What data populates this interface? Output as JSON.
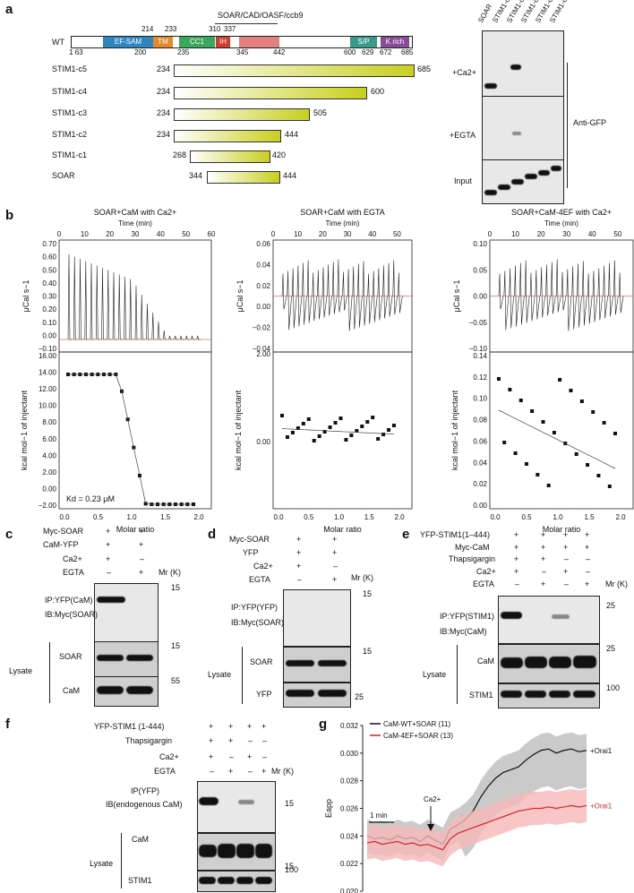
{
  "panels": {
    "a": "a",
    "b": "b",
    "c": "c",
    "d": "d",
    "e": "e",
    "f": "f",
    "g": "g"
  },
  "panel_a": {
    "region_title": "SOAR/CAD/OASF/ccb9",
    "wt_label": "WT",
    "domains": [
      {
        "name": "EF-SAM",
        "color": "#2e86c1"
      },
      {
        "name": "TM",
        "color": "#e08a2c"
      },
      {
        "name": "CC1",
        "color": "#3aa85a"
      },
      {
        "name": "IH",
        "color": "#d23b2b"
      },
      {
        "name": "",
        "color": "#e58080"
      },
      {
        "name": "S/P",
        "color": "#3a9a8a"
      },
      {
        "name": "K rich",
        "color": "#8a4a9a"
      }
    ],
    "top_numbers": [
      "214",
      "233",
      "310",
      "337"
    ],
    "bottom_numbers": [
      "1",
      "63",
      "200",
      "235",
      "345",
      "442",
      "600",
      "629",
      "672",
      "685"
    ],
    "constructs": [
      {
        "name": "STIM1-c5",
        "start": "234",
        "end": "685"
      },
      {
        "name": "STIM1-c4",
        "start": "234",
        "end": "600"
      },
      {
        "name": "STIM1-c3",
        "start": "234",
        "end": "505"
      },
      {
        "name": "STIM1-c2",
        "start": "234",
        "end": "444"
      },
      {
        "name": "STIM1-c1",
        "start": "268",
        "end": "420"
      },
      {
        "name": "SOAR",
        "start": "344",
        "end": "444"
      }
    ],
    "blot_lanes": [
      "SOAR",
      "STIM1-c1",
      "STIM1-c2",
      "STIM1-c3",
      "STIM1-c4",
      "STIM1-c5"
    ],
    "blot_rows": [
      "+Ca2+",
      "+EGTA",
      "Input"
    ],
    "antibody": "Anti-GFP"
  },
  "panel_b": {
    "plots": [
      {
        "title": "SOAR+CaM with Ca2+",
        "time_label": "Time (min)",
        "time_ticks": [
          "0",
          "10",
          "20",
          "30",
          "40",
          "50",
          "60"
        ],
        "top_ylabel": "μCal s−1",
        "top_ticks": [
          "0.70",
          "0.60",
          "0.50",
          "0.40",
          "0.30",
          "0.20",
          "0.10",
          "0.00",
          "−0.10"
        ],
        "bottom_ylabel": "kcal mol−1 of injectant",
        "bottom_ticks": [
          "16.00",
          "14.00",
          "12.00",
          "10.00",
          "8.00",
          "6.00",
          "4.00",
          "2.00",
          "0.00",
          "−2.00"
        ],
        "x_label": "Molar ratio",
        "x_ticks": [
          "0.0",
          "0.5",
          "1.0",
          "1.5",
          "2.0"
        ],
        "annotation": "Kd = 0.23 μM"
      },
      {
        "title": "SOAR+CaM with EGTA",
        "time_label": "Time (min)",
        "time_ticks": [
          "0",
          "10",
          "20",
          "30",
          "40",
          "50"
        ],
        "top_ylabel": "μCal s−1",
        "top_ticks": [
          "0.06",
          "0.04",
          "0.02",
          "0.00",
          "−0.02",
          "−0.04"
        ],
        "bottom_ylabel": "kcal mol−1 of injectant",
        "bottom_ticks": [
          "2.00",
          "0.00"
        ],
        "x_label": "Molar ratio",
        "x_ticks": [
          "0.0",
          "0.5",
          "1.0",
          "1.5",
          "2.0"
        ]
      },
      {
        "title": "SOAR+CaM-4EF with Ca2+",
        "time_label": "Time (min)",
        "time_ticks": [
          "0",
          "10",
          "20",
          "30",
          "40",
          "50"
        ],
        "top_ylabel": "μCal s−1",
        "top_ticks": [
          "0.10",
          "0.05",
          "0.00",
          "−0.05",
          "−0.10"
        ],
        "bottom_ylabel": "kcal mol−1 of injectant",
        "bottom_ticks": [
          "0.14",
          "0.12",
          "0.10",
          "0.08",
          "0.06",
          "0.04",
          "0.02",
          "0.00"
        ],
        "x_label": "Molar ratio",
        "x_ticks": [
          "0.0",
          "0.5",
          "1.0",
          "1.5",
          "2.0"
        ]
      }
    ]
  },
  "panel_c": {
    "conditions": [
      {
        "label": "Myc-SOAR",
        "values": [
          "+",
          "+"
        ]
      },
      {
        "label": "CaM-YFP",
        "values": [
          "+",
          "+"
        ]
      },
      {
        "label": "Ca2+",
        "values": [
          "+",
          "–"
        ]
      },
      {
        "label": "EGTA",
        "values": [
          "–",
          "+"
        ]
      }
    ],
    "mr": "Mr (K)",
    "ip_label": "IP:YFP(CaM)",
    "ib_label": "IB:Myc(SOAR)",
    "markers": [
      "15",
      "15",
      "55"
    ],
    "lysate": "Lysate",
    "rows": [
      "SOAR",
      "CaM"
    ]
  },
  "panel_d": {
    "conditions": [
      {
        "label": "Myc-SOAR",
        "values": [
          "+",
          "+"
        ]
      },
      {
        "label": "YFP",
        "values": [
          "+",
          "+"
        ]
      },
      {
        "label": "Ca2+",
        "values": [
          "+",
          "–"
        ]
      },
      {
        "label": "EGTA",
        "values": [
          "–",
          "+"
        ]
      }
    ],
    "mr": "Mr (K)",
    "ip_label": "IP:YFP(YFP)",
    "ib_label": "IB:Myc(SOAR)",
    "markers": [
      "15",
      "15",
      "25"
    ],
    "lysate": "Lysate",
    "rows": [
      "SOAR",
      "YFP"
    ]
  },
  "panel_e": {
    "conditions": [
      {
        "label": "YFP-STIM1(1–444)",
        "values": [
          "+",
          "+",
          "+",
          "+"
        ]
      },
      {
        "label": "Myc-CaM",
        "values": [
          "+",
          "+",
          "+",
          "+"
        ]
      },
      {
        "label": "Thapsigargin",
        "values": [
          "+",
          "+",
          "–",
          "–"
        ]
      },
      {
        "label": "Ca2+",
        "values": [
          "+",
          "–",
          "+",
          "–"
        ]
      },
      {
        "label": "EGTA",
        "values": [
          "–",
          "+",
          "–",
          "+"
        ]
      }
    ],
    "mr": "Mr (K)",
    "ip_label": "IP:YFP(STIM1)",
    "ib_label": "IB:Myc(CaM)",
    "markers": [
      "25",
      "25",
      "100"
    ],
    "lysate": "Lysate",
    "rows": [
      "CaM",
      "STIM1"
    ]
  },
  "panel_f": {
    "conditions": [
      {
        "label": "YFP-STIM1 (1-444)",
        "values": [
          "+",
          "+",
          "+",
          "+"
        ]
      },
      {
        "label": "Thapsigargin",
        "values": [
          "+",
          "+",
          "–",
          "–"
        ]
      },
      {
        "label": "Ca2+",
        "values": [
          "+",
          "–",
          "+",
          "–"
        ]
      },
      {
        "label": "EGTA",
        "values": [
          "–",
          "+",
          "–",
          "+"
        ]
      }
    ],
    "mr": "Mr (K)",
    "ip_label": "IP(YFP)",
    "ib_label": "IB(endogenous CaM)",
    "markers": [
      "15",
      "15",
      "100"
    ],
    "lysate": "Lysate",
    "rows": [
      "CaM",
      "STIM1"
    ]
  },
  "chart_data": [
    {
      "type": "line",
      "title": "",
      "ylabel": "Eapp",
      "xlabel": "",
      "ylim": [
        0.02,
        0.032
      ],
      "yticks": [
        "0.020",
        "0.022",
        "0.024",
        "0.026",
        "0.028",
        "0.030",
        "0.032"
      ],
      "scale_label": "1 min",
      "event_label": "Ca2+",
      "series": [
        {
          "name": "CaM-WT+SOAR (11)",
          "color": "#111111",
          "end_label": "+Orai1",
          "values": [
            0.024,
            0.0238,
            0.0239,
            0.0237,
            0.024,
            0.0238,
            0.0239,
            0.0236,
            0.024,
            0.0237,
            0.0234,
            0.0245,
            0.0248,
            0.0252,
            0.0258,
            0.0268,
            0.0276,
            0.0282,
            0.0286,
            0.0288,
            0.029,
            0.0295,
            0.0299,
            0.0302,
            0.0303,
            0.03,
            0.0302,
            0.0303,
            0.0301,
            0.0302
          ]
        },
        {
          "name": "CaM-4EF+SOAR (13)",
          "color": "#d62728",
          "end_label": "+Orai1",
          "values": [
            0.0235,
            0.0236,
            0.0234,
            0.0235,
            0.0236,
            0.0234,
            0.0235,
            0.0233,
            0.0234,
            0.0232,
            0.023,
            0.0238,
            0.0242,
            0.0244,
            0.0246,
            0.0248,
            0.025,
            0.0252,
            0.0254,
            0.0256,
            0.0258,
            0.0259,
            0.026,
            0.026,
            0.0261,
            0.026,
            0.0261,
            0.0262,
            0.0261,
            0.0262
          ]
        }
      ]
    }
  ]
}
